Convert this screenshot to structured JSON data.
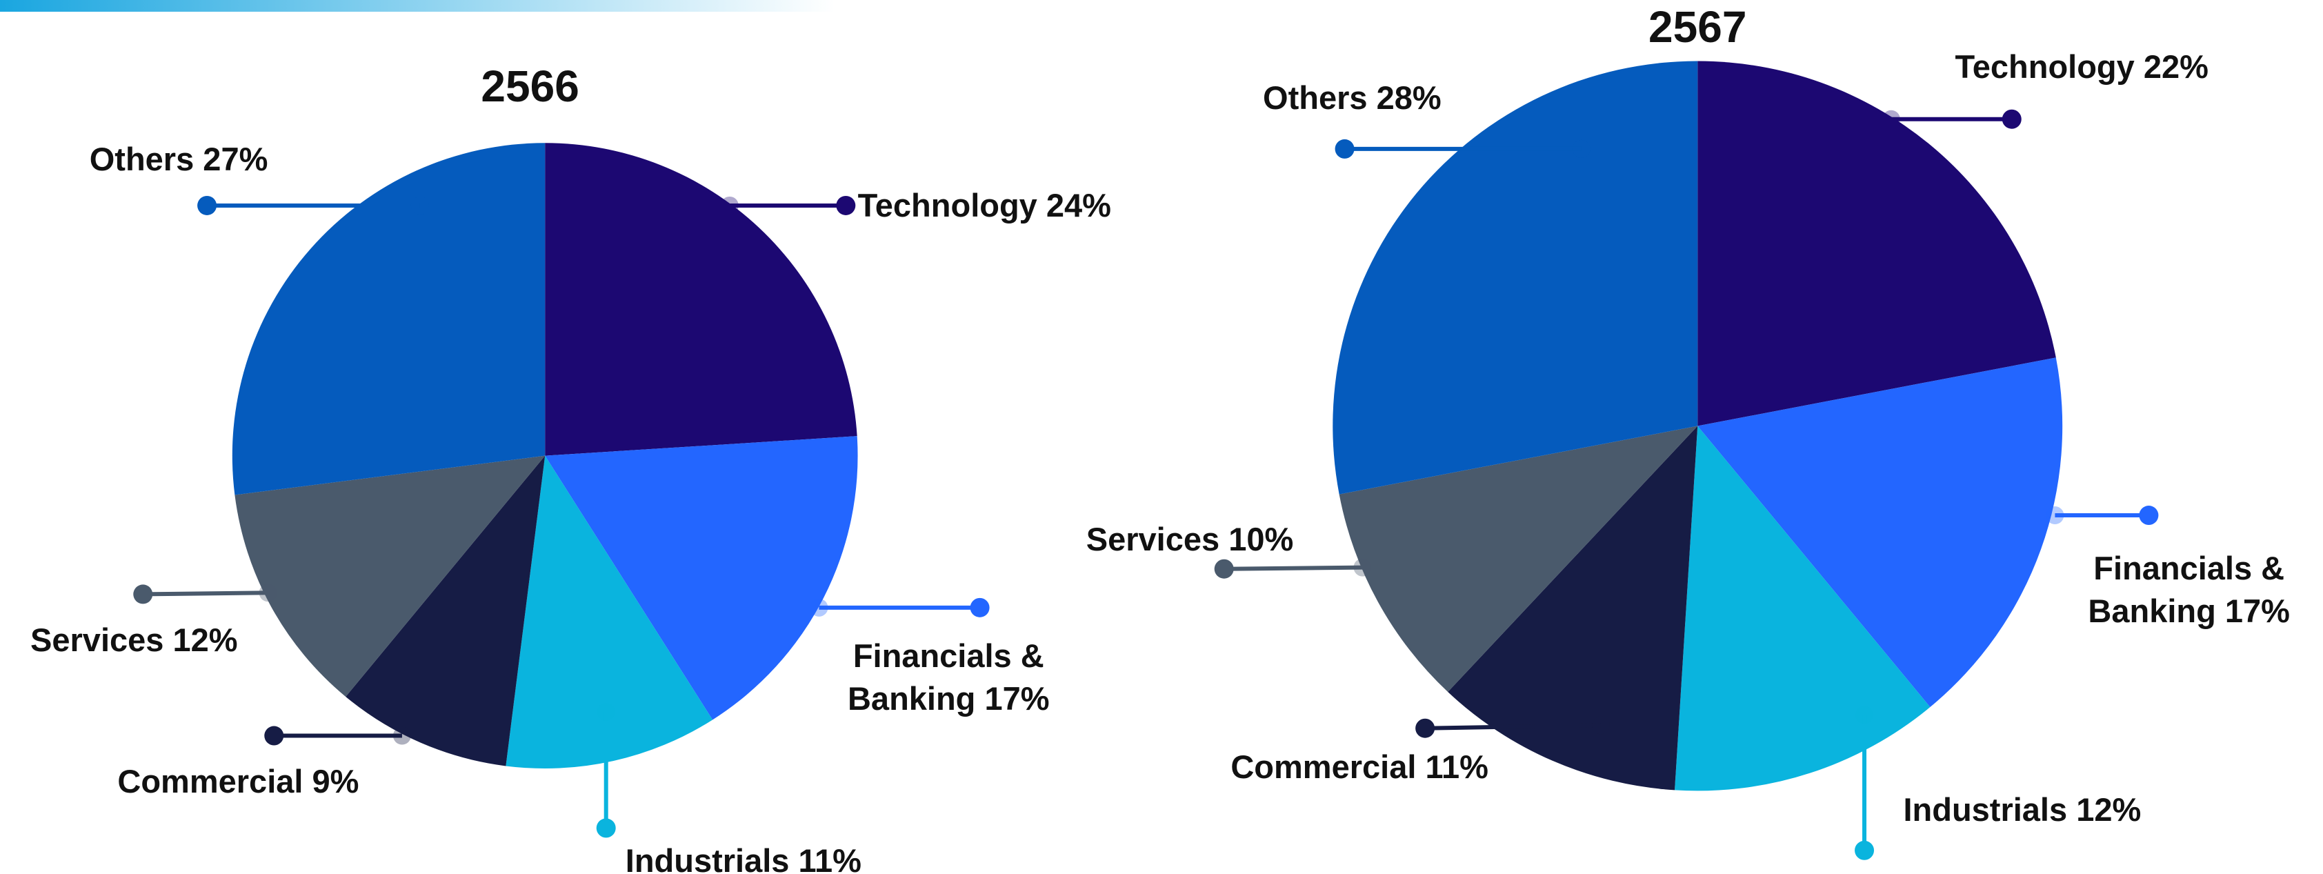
{
  "chart_data": [
    {
      "type": "pie",
      "title": "2566",
      "categories": [
        "Technology",
        "Financials & Banking",
        "Industrials",
        "Commercial",
        "Services",
        "Others"
      ],
      "values": [
        24,
        17,
        11,
        9,
        12,
        27
      ],
      "value_labels": [
        "24%",
        "17%",
        "11%",
        "9%",
        "12%",
        "27%"
      ],
      "colors": [
        "#1c0872",
        "#2366ff",
        "#0ab4de",
        "#161c45",
        "#4a5a6c",
        "#055bbd"
      ]
    },
    {
      "type": "pie",
      "title": "2567",
      "categories": [
        "Technology",
        "Financials & Banking",
        "Industrials",
        "Commercial",
        "Services",
        "Others"
      ],
      "values": [
        22,
        17,
        12,
        11,
        10,
        28
      ],
      "value_labels": [
        "22%",
        "17%",
        "12%",
        "11%",
        "10%",
        "28%"
      ],
      "colors": [
        "#1c0872",
        "#2366ff",
        "#0ab4de",
        "#161c45",
        "#4a5a6c",
        "#055bbd"
      ]
    }
  ]
}
